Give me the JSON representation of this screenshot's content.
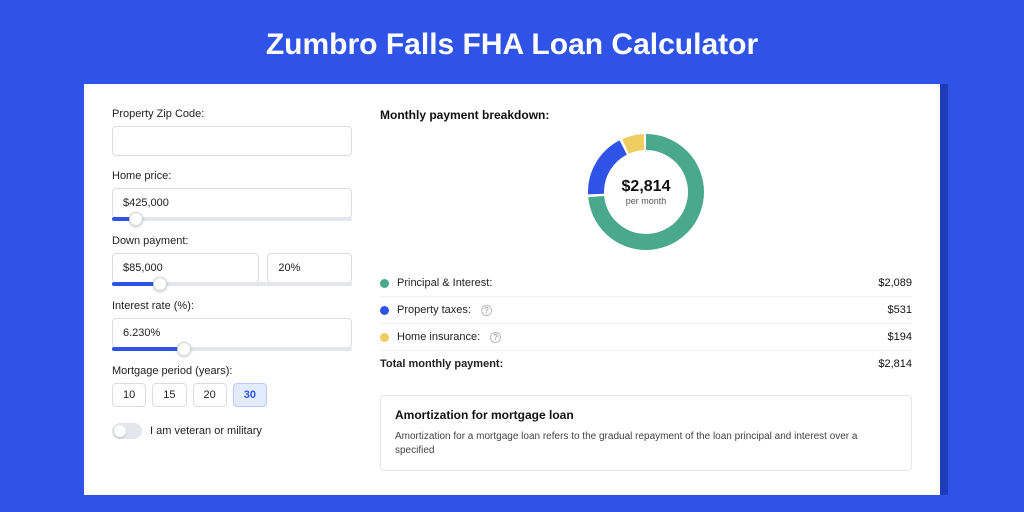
{
  "page": {
    "title": "Zumbro Falls FHA Loan Calculator",
    "background_color": "#2f53e6",
    "panel_shadow_color": "#1e3bb8"
  },
  "form": {
    "zip": {
      "label": "Property Zip Code:",
      "value": ""
    },
    "home_price": {
      "label": "Home price:",
      "value": "$425,000",
      "slider_percent": 10
    },
    "down_payment": {
      "label": "Down payment:",
      "amount": "$85,000",
      "percent": "20%",
      "slider_percent": 20
    },
    "interest_rate": {
      "label": "Interest rate (%):",
      "value": "6.230%",
      "slider_percent": 30
    },
    "period": {
      "label": "Mortgage period (years):",
      "options": [
        "10",
        "15",
        "20",
        "30"
      ],
      "active": "30"
    },
    "veteran": {
      "label": "I am veteran or military",
      "checked": false
    }
  },
  "breakdown": {
    "title": "Monthly payment breakdown:",
    "donut": {
      "amount": "$2,814",
      "sub": "per month",
      "segments": [
        {
          "name": "principal_interest",
          "color": "#4aa98b",
          "fraction": 0.742
        },
        {
          "name": "property_taxes",
          "color": "#2f53e6",
          "fraction": 0.189
        },
        {
          "name": "home_insurance",
          "color": "#f0cd61",
          "fraction": 0.069
        }
      ],
      "thickness": 16,
      "radius": 50
    },
    "items": [
      {
        "dot": "#4aa98b",
        "label": "Principal & Interest:",
        "info": false,
        "value": "$2,089"
      },
      {
        "dot": "#2f53e6",
        "label": "Property taxes:",
        "info": true,
        "value": "$531"
      },
      {
        "dot": "#f0cd61",
        "label": "Home insurance:",
        "info": true,
        "value": "$194"
      }
    ],
    "total": {
      "label": "Total monthly payment:",
      "value": "$2,814"
    }
  },
  "amortization": {
    "title": "Amortization for mortgage loan",
    "text": "Amortization for a mortgage loan refers to the gradual repayment of the loan principal and interest over a specified"
  }
}
